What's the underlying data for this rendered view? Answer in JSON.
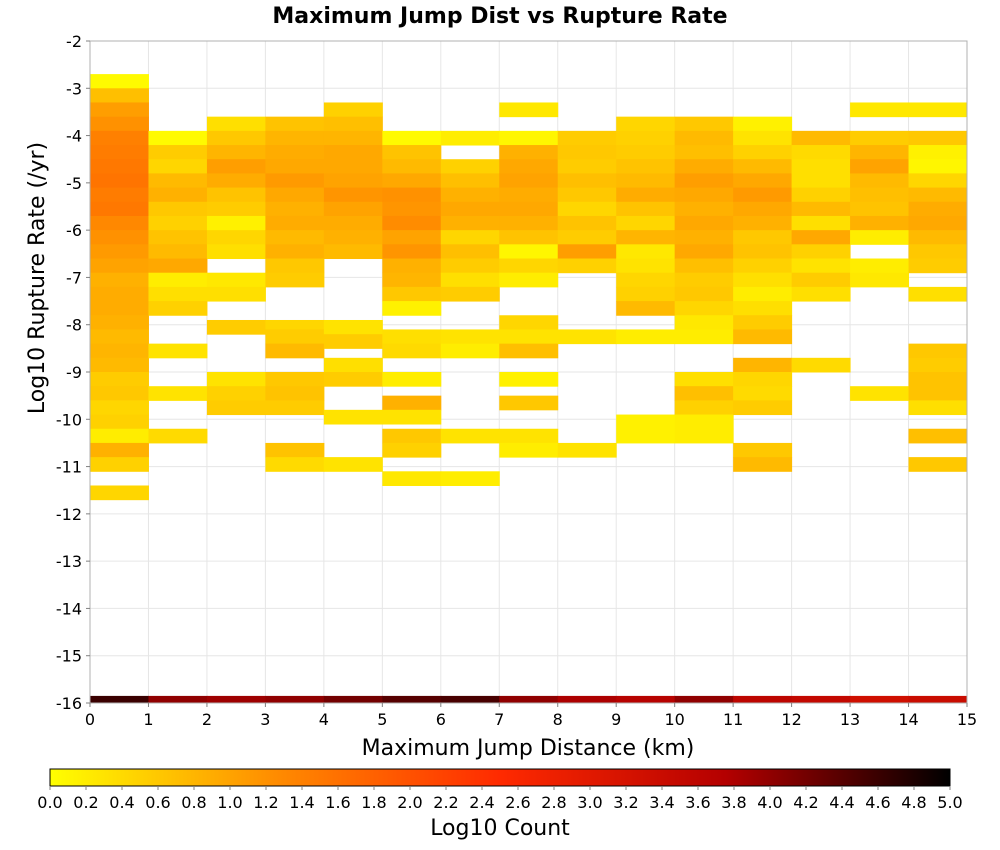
{
  "chart_data": {
    "type": "heatmap",
    "title": "Maximum Jump Dist vs Rupture Rate",
    "xlabel": "Maximum Jump Distance (km)",
    "ylabel": "Log10 Rupture Rate (/yr)",
    "xlim": [
      0,
      15
    ],
    "ylim": [
      -16,
      -2
    ],
    "x_ticks": [
      "0",
      "1",
      "2",
      "3",
      "4",
      "5",
      "6",
      "7",
      "8",
      "9",
      "10",
      "11",
      "12",
      "13",
      "14",
      "15"
    ],
    "y_ticks": [
      "-2",
      "-3",
      "-4",
      "-5",
      "-6",
      "-7",
      "-8",
      "-9",
      "-10",
      "-11",
      "-12",
      "-13",
      "-14",
      "-15",
      "-16"
    ],
    "grid": true,
    "cell_width": 1,
    "cell_height": 0.3,
    "colorbar": {
      "label": "Log10 Count",
      "min": 0,
      "max": 5,
      "ticks": [
        "0.0",
        "0.2",
        "0.4",
        "0.6",
        "0.8",
        "1.0",
        "1.2",
        "1.4",
        "1.6",
        "1.8",
        "2.0",
        "2.2",
        "2.4",
        "2.6",
        "2.8",
        "3.0",
        "3.2",
        "3.4",
        "3.6",
        "3.8",
        "4.0",
        "4.2",
        "4.4",
        "4.6",
        "4.8",
        "5.0"
      ],
      "colors": [
        "#ffff00",
        "#ff8c00",
        "#ff2a00",
        "#b40000",
        "#000000"
      ]
    },
    "columns": [
      {
        "x": 0,
        "cells": [
          [
            -2.85,
            0.05
          ],
          [
            -3.15,
            0.7
          ],
          [
            -3.45,
            1.05
          ],
          [
            -3.75,
            1.2
          ],
          [
            -4.05,
            1.4
          ],
          [
            -4.35,
            1.45
          ],
          [
            -4.65,
            1.5
          ],
          [
            -4.95,
            1.55
          ],
          [
            -5.25,
            1.45
          ],
          [
            -5.55,
            1.5
          ],
          [
            -5.85,
            1.3
          ],
          [
            -6.15,
            1.2
          ],
          [
            -6.45,
            1.1
          ],
          [
            -6.75,
            1.0
          ],
          [
            -7.05,
            0.85
          ],
          [
            -7.35,
            0.9
          ],
          [
            -7.65,
            0.9
          ],
          [
            -7.95,
            0.85
          ],
          [
            -8.25,
            0.75
          ],
          [
            -8.55,
            0.8
          ],
          [
            -8.85,
            0.75
          ],
          [
            -9.15,
            0.55
          ],
          [
            -9.45,
            0.6
          ],
          [
            -9.75,
            0.45
          ],
          [
            -10.05,
            0.5
          ],
          [
            -10.35,
            0.2
          ],
          [
            -10.65,
            0.85
          ],
          [
            -10.95,
            0.5
          ],
          [
            -11.55,
            0.45
          ]
        ]
      },
      {
        "x": 1,
        "cells": [
          [
            -4.05,
            0.05
          ],
          [
            -4.35,
            0.55
          ],
          [
            -4.65,
            0.45
          ],
          [
            -4.95,
            0.75
          ],
          [
            -5.25,
            0.85
          ],
          [
            -5.55,
            0.6
          ],
          [
            -5.85,
            0.5
          ],
          [
            -6.15,
            0.65
          ],
          [
            -6.45,
            0.75
          ],
          [
            -6.75,
            0.95
          ],
          [
            -7.05,
            0.2
          ],
          [
            -7.35,
            0.35
          ],
          [
            -7.65,
            0.5
          ],
          [
            -8.55,
            0.3
          ],
          [
            -9.45,
            0.3
          ],
          [
            -10.35,
            0.4
          ]
        ]
      },
      {
        "x": 2,
        "cells": [
          [
            -3.75,
            0.35
          ],
          [
            -4.05,
            0.6
          ],
          [
            -4.35,
            0.8
          ],
          [
            -4.65,
            1.05
          ],
          [
            -4.95,
            0.9
          ],
          [
            -5.25,
            0.65
          ],
          [
            -5.55,
            0.55
          ],
          [
            -5.85,
            0.15
          ],
          [
            -6.15,
            0.45
          ],
          [
            -6.45,
            0.35
          ],
          [
            -7.05,
            0.25
          ],
          [
            -7.35,
            0.35
          ],
          [
            -8.05,
            0.55
          ],
          [
            -9.15,
            0.3
          ],
          [
            -9.45,
            0.5
          ],
          [
            -9.75,
            0.55
          ]
        ]
      },
      {
        "x": 3,
        "cells": [
          [
            -3.75,
            0.65
          ],
          [
            -4.05,
            0.8
          ],
          [
            -4.35,
            0.9
          ],
          [
            -4.65,
            0.95
          ],
          [
            -4.95,
            1.1
          ],
          [
            -5.25,
            0.95
          ],
          [
            -5.55,
            0.85
          ],
          [
            -5.85,
            0.9
          ],
          [
            -6.15,
            0.75
          ],
          [
            -6.45,
            0.85
          ],
          [
            -6.75,
            0.6
          ],
          [
            -7.05,
            0.55
          ],
          [
            -8.05,
            0.45
          ],
          [
            -8.25,
            0.55
          ],
          [
            -8.55,
            0.75
          ],
          [
            -9.15,
            0.6
          ],
          [
            -9.45,
            0.65
          ],
          [
            -9.75,
            0.55
          ],
          [
            -10.65,
            0.65
          ],
          [
            -10.95,
            0.4
          ]
        ]
      },
      {
        "x": 4,
        "cells": [
          [
            -3.45,
            0.5
          ],
          [
            -3.75,
            0.7
          ],
          [
            -4.05,
            0.8
          ],
          [
            -4.35,
            0.95
          ],
          [
            -4.65,
            0.95
          ],
          [
            -4.95,
            1.0
          ],
          [
            -5.25,
            1.15
          ],
          [
            -5.55,
            1.0
          ],
          [
            -5.85,
            0.9
          ],
          [
            -6.15,
            0.85
          ],
          [
            -6.45,
            0.75
          ],
          [
            -8.05,
            0.3
          ],
          [
            -8.35,
            0.55
          ],
          [
            -8.85,
            0.35
          ],
          [
            -9.15,
            0.55
          ],
          [
            -9.95,
            0.3
          ],
          [
            -10.95,
            0.3
          ]
        ]
      },
      {
        "x": 5,
        "cells": [
          [
            -4.05,
            0.05
          ],
          [
            -4.35,
            0.65
          ],
          [
            -4.65,
            0.75
          ],
          [
            -4.95,
            0.95
          ],
          [
            -5.25,
            1.2
          ],
          [
            -5.55,
            1.15
          ],
          [
            -5.85,
            1.25
          ],
          [
            -6.15,
            1.0
          ],
          [
            -6.45,
            1.15
          ],
          [
            -6.75,
            0.85
          ],
          [
            -7.05,
            0.8
          ],
          [
            -7.35,
            0.6
          ],
          [
            -7.65,
            0.15
          ],
          [
            -8.25,
            0.35
          ],
          [
            -8.55,
            0.4
          ],
          [
            -9.15,
            0.2
          ],
          [
            -9.65,
            0.85
          ],
          [
            -9.95,
            0.3
          ],
          [
            -10.35,
            0.6
          ],
          [
            -10.65,
            0.5
          ],
          [
            -11.25,
            0.25
          ]
        ]
      },
      {
        "x": 6,
        "cells": [
          [
            -4.05,
            0.2
          ],
          [
            -4.65,
            0.5
          ],
          [
            -4.95,
            0.7
          ],
          [
            -5.25,
            0.85
          ],
          [
            -5.55,
            0.95
          ],
          [
            -5.85,
            0.85
          ],
          [
            -6.15,
            0.45
          ],
          [
            -6.45,
            0.7
          ],
          [
            -6.75,
            0.55
          ],
          [
            -7.05,
            0.35
          ],
          [
            -7.35,
            0.55
          ],
          [
            -8.25,
            0.3
          ],
          [
            -8.55,
            0.2
          ],
          [
            -10.35,
            0.3
          ],
          [
            -11.25,
            0.2
          ]
        ]
      },
      {
        "x": 7,
        "cells": [
          [
            -3.45,
            0.25
          ],
          [
            -4.05,
            0.1
          ],
          [
            -4.35,
            0.85
          ],
          [
            -4.65,
            0.95
          ],
          [
            -4.95,
            1.0
          ],
          [
            -5.25,
            0.9
          ],
          [
            -5.55,
            0.95
          ],
          [
            -5.85,
            0.85
          ],
          [
            -6.15,
            0.65
          ],
          [
            -6.45,
            0.1
          ],
          [
            -6.75,
            0.45
          ],
          [
            -7.05,
            0.2
          ],
          [
            -7.95,
            0.45
          ],
          [
            -8.25,
            0.3
          ],
          [
            -8.55,
            0.7
          ],
          [
            -9.15,
            0.15
          ],
          [
            -9.65,
            0.6
          ],
          [
            -10.35,
            0.3
          ],
          [
            -10.65,
            0.2
          ]
        ]
      },
      {
        "x": 8,
        "cells": [
          [
            -4.05,
            0.55
          ],
          [
            -4.35,
            0.6
          ],
          [
            -4.65,
            0.55
          ],
          [
            -4.95,
            0.7
          ],
          [
            -5.25,
            0.6
          ],
          [
            -5.55,
            0.45
          ],
          [
            -5.85,
            0.65
          ],
          [
            -6.15,
            0.55
          ],
          [
            -6.45,
            1.05
          ],
          [
            -6.75,
            0.5
          ],
          [
            -8.25,
            0.3
          ],
          [
            -10.65,
            0.3
          ]
        ]
      },
      {
        "x": 9,
        "cells": [
          [
            -3.75,
            0.45
          ],
          [
            -4.05,
            0.5
          ],
          [
            -4.35,
            0.55
          ],
          [
            -4.65,
            0.65
          ],
          [
            -4.95,
            0.75
          ],
          [
            -5.25,
            0.9
          ],
          [
            -5.55,
            0.65
          ],
          [
            -5.85,
            0.45
          ],
          [
            -6.15,
            0.8
          ],
          [
            -6.45,
            0.25
          ],
          [
            -6.75,
            0.3
          ],
          [
            -7.05,
            0.45
          ],
          [
            -7.35,
            0.5
          ],
          [
            -7.65,
            0.75
          ],
          [
            -8.25,
            0.2
          ],
          [
            -10.05,
            0.15
          ],
          [
            -10.35,
            0.15
          ]
        ]
      },
      {
        "x": 10,
        "cells": [
          [
            -3.75,
            0.6
          ],
          [
            -4.05,
            0.75
          ],
          [
            -4.35,
            0.7
          ],
          [
            -4.65,
            0.9
          ],
          [
            -4.95,
            1.05
          ],
          [
            -5.25,
            0.95
          ],
          [
            -5.55,
            0.85
          ],
          [
            -5.85,
            0.95
          ],
          [
            -6.15,
            0.85
          ],
          [
            -6.45,
            0.95
          ],
          [
            -6.75,
            0.7
          ],
          [
            -7.05,
            0.55
          ],
          [
            -7.35,
            0.6
          ],
          [
            -7.65,
            0.45
          ],
          [
            -7.95,
            0.25
          ],
          [
            -8.25,
            0.2
          ],
          [
            -9.15,
            0.35
          ],
          [
            -9.45,
            0.7
          ],
          [
            -9.75,
            0.5
          ],
          [
            -10.05,
            0.2
          ],
          [
            -10.35,
            0.2
          ]
        ]
      },
      {
        "x": 11,
        "cells": [
          [
            -3.75,
            0.15
          ],
          [
            -4.05,
            0.3
          ],
          [
            -4.35,
            0.5
          ],
          [
            -4.65,
            0.75
          ],
          [
            -4.95,
            0.95
          ],
          [
            -5.25,
            1.1
          ],
          [
            -5.55,
            0.95
          ],
          [
            -5.85,
            0.85
          ],
          [
            -6.15,
            0.6
          ],
          [
            -6.45,
            0.65
          ],
          [
            -6.75,
            0.5
          ],
          [
            -7.05,
            0.35
          ],
          [
            -7.35,
            0.2
          ],
          [
            -7.65,
            0.35
          ],
          [
            -7.95,
            0.55
          ],
          [
            -8.25,
            0.75
          ],
          [
            -8.85,
            0.8
          ],
          [
            -9.15,
            0.45
          ],
          [
            -9.45,
            0.4
          ],
          [
            -9.75,
            0.55
          ],
          [
            -10.65,
            0.6
          ],
          [
            -10.95,
            0.75
          ]
        ]
      },
      {
        "x": 12,
        "cells": [
          [
            -4.05,
            0.75
          ],
          [
            -4.35,
            0.4
          ],
          [
            -4.65,
            0.35
          ],
          [
            -4.95,
            0.35
          ],
          [
            -5.25,
            0.5
          ],
          [
            -5.55,
            0.75
          ],
          [
            -5.85,
            0.35
          ],
          [
            -6.15,
            0.95
          ],
          [
            -6.45,
            0.5
          ],
          [
            -6.75,
            0.3
          ],
          [
            -7.05,
            0.55
          ],
          [
            -7.35,
            0.35
          ],
          [
            -8.85,
            0.4
          ]
        ]
      },
      {
        "x": 13,
        "cells": [
          [
            -3.45,
            0.25
          ],
          [
            -4.05,
            0.55
          ],
          [
            -4.35,
            0.8
          ],
          [
            -4.65,
            1.0
          ],
          [
            -4.95,
            0.75
          ],
          [
            -5.25,
            0.7
          ],
          [
            -5.55,
            0.65
          ],
          [
            -5.85,
            0.85
          ],
          [
            -6.15,
            0.2
          ],
          [
            -6.75,
            0.2
          ],
          [
            -7.05,
            0.25
          ],
          [
            -9.45,
            0.3
          ]
        ]
      },
      {
        "x": 14,
        "cells": [
          [
            -3.45,
            0.25
          ],
          [
            -4.05,
            0.6
          ],
          [
            -4.35,
            0.15
          ],
          [
            -4.65,
            0.1
          ],
          [
            -4.95,
            0.45
          ],
          [
            -5.25,
            0.75
          ],
          [
            -5.55,
            0.9
          ],
          [
            -5.85,
            0.95
          ],
          [
            -6.15,
            0.75
          ],
          [
            -6.45,
            0.6
          ],
          [
            -6.75,
            0.55
          ],
          [
            -7.35,
            0.35
          ],
          [
            -8.55,
            0.6
          ],
          [
            -8.85,
            0.55
          ],
          [
            -9.15,
            0.65
          ],
          [
            -9.45,
            0.65
          ],
          [
            -9.75,
            0.35
          ],
          [
            -10.35,
            0.7
          ],
          [
            -10.95,
            0.6
          ]
        ]
      }
    ],
    "bottom_row": {
      "y": -16,
      "values": [
        4.6,
        4.0,
        3.9,
        4.0,
        4.2,
        4.4,
        4.5,
        4.0,
        3.8,
        3.7,
        4.0,
        3.6,
        3.5,
        3.3,
        3.4
      ]
    }
  }
}
